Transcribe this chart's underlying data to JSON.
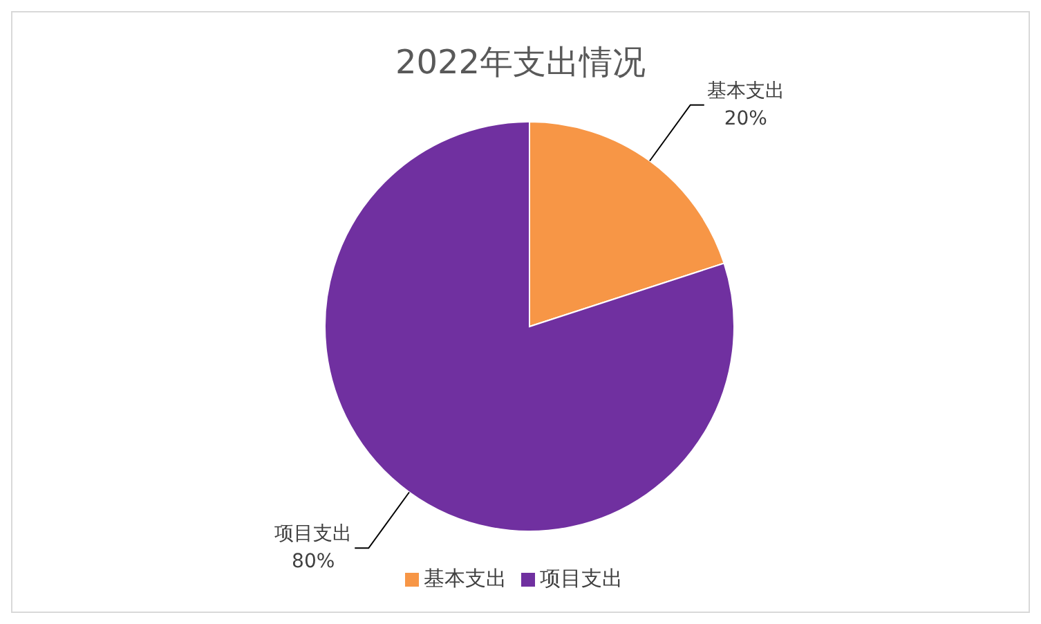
{
  "chart_data": {
    "type": "pie",
    "title": "2022年支出情况",
    "categories": [
      "基本支出",
      "项目支出"
    ],
    "values": [
      20,
      80
    ],
    "colors": [
      "#f79646",
      "#7030a0"
    ],
    "value_labels": [
      "20%",
      "80%"
    ],
    "legend": "bottom"
  }
}
